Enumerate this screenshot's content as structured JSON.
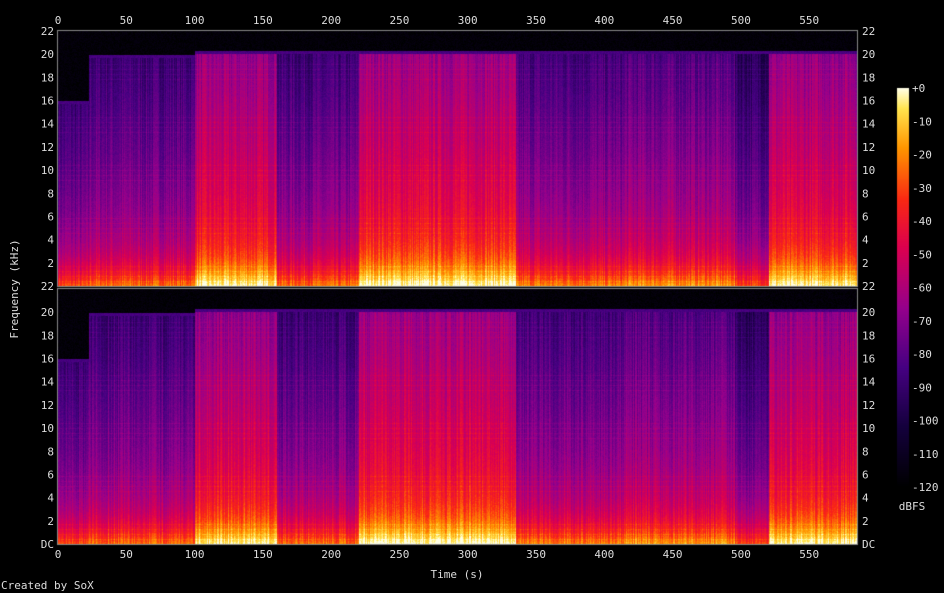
{
  "chart_data": {
    "type": "heatmap",
    "xlabel": "Time (s)",
    "ylabel": "Frequency (kHz)",
    "x_ticks": [
      0,
      50,
      100,
      150,
      200,
      250,
      300,
      350,
      400,
      450,
      500,
      550
    ],
    "xlim": [
      0,
      585
    ],
    "y_ticks": [
      "DC",
      "2",
      "4",
      "6",
      "8",
      "10",
      "12",
      "14",
      "16",
      "18",
      "20",
      "22"
    ],
    "ylim": [
      0,
      22
    ],
    "channels": 2,
    "colorbar": {
      "unit": "dBFS",
      "ticks": [
        "+0",
        "-10",
        "-20",
        "-30",
        "-40",
        "-50",
        "-60",
        "-70",
        "-80",
        "-90",
        "-100",
        "-110",
        "-120"
      ],
      "range": [
        -120,
        0
      ]
    },
    "segments": [
      {
        "start": 0,
        "end": 22,
        "cutoff_khz": 16,
        "level": 0.45
      },
      {
        "start": 22,
        "end": 100,
        "cutoff_khz": 20,
        "level": 0.5
      },
      {
        "start": 100,
        "end": 160,
        "cutoff_khz": 20.3,
        "level": 0.68
      },
      {
        "start": 160,
        "end": 220,
        "cutoff_khz": 20.3,
        "level": 0.5
      },
      {
        "start": 220,
        "end": 335,
        "cutoff_khz": 20.3,
        "level": 0.7
      },
      {
        "start": 335,
        "end": 415,
        "cutoff_khz": 20.3,
        "level": 0.52
      },
      {
        "start": 415,
        "end": 495,
        "cutoff_khz": 20.3,
        "level": 0.55
      },
      {
        "start": 495,
        "end": 520,
        "cutoff_khz": 20.3,
        "level": 0.45
      },
      {
        "start": 520,
        "end": 585,
        "cutoff_khz": 20.3,
        "level": 0.68
      }
    ]
  },
  "footer": {
    "credit": "Created by SoX"
  }
}
